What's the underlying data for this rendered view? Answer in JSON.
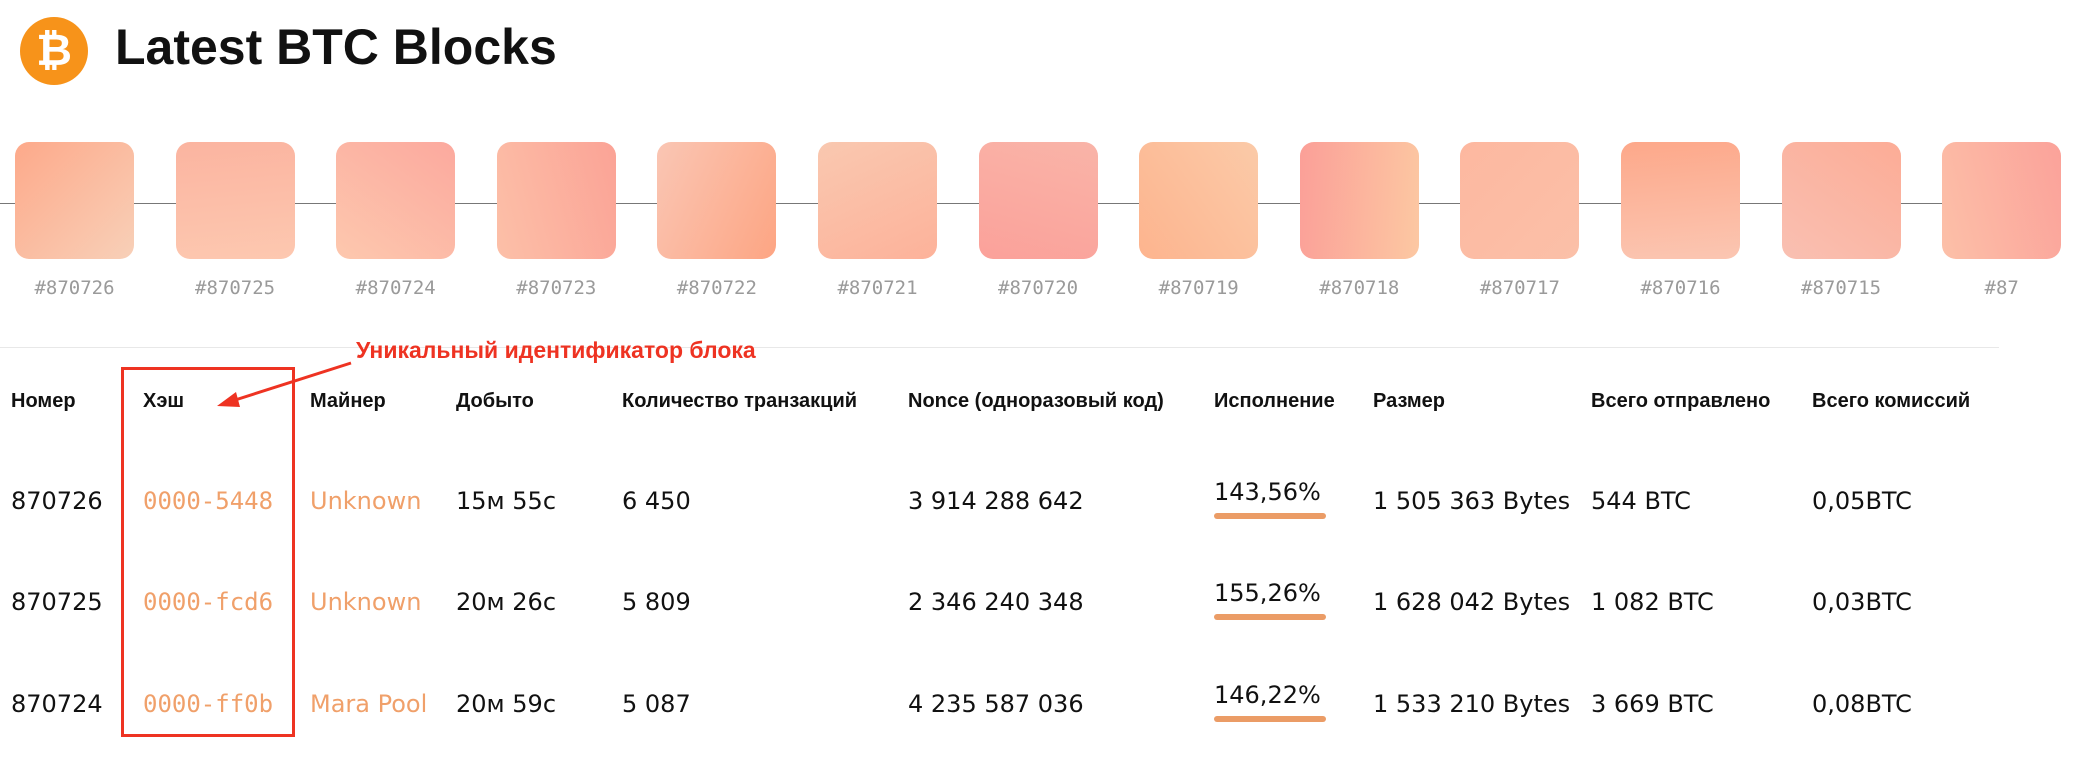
{
  "header": {
    "title": "Latest BTC Blocks"
  },
  "blocks": [
    "#870726",
    "#870725",
    "#870724",
    "#870723",
    "#870722",
    "#870721",
    "#870720",
    "#870719",
    "#870718",
    "#870717",
    "#870716",
    "#870715",
    "#87"
  ],
  "annotation": "Уникальный идентификатор блока",
  "table": {
    "columns": [
      "Номер",
      "Хэш",
      "Майнер",
      "Добыто",
      "Количество транзакций",
      "Nonce (одноразовый код)",
      "Исполнение",
      "Размер",
      "Всего отправлено",
      "Всего комиссий"
    ],
    "rows": [
      [
        "870726",
        "0000-5448",
        "Unknown",
        "15м 55с",
        "6 450",
        "3 914 288 642",
        "143,56%",
        "1 505 363 Bytes",
        "544 BTC",
        "0,05BTC"
      ],
      [
        "870725",
        "0000-fcd6",
        "Unknown",
        "20м 26с",
        "5 809",
        "2 346 240 348",
        "155,26%",
        "1 628 042 Bytes",
        "1 082 BTC",
        "0,03BTC"
      ],
      [
        "870724",
        "0000-ff0b",
        "Mara Pool",
        "20м 59с",
        "5 087",
        "4 235 587 036",
        "146,22%",
        "1 533 210 Bytes",
        "3 669 BTC",
        "0,08BTC"
      ]
    ]
  }
}
